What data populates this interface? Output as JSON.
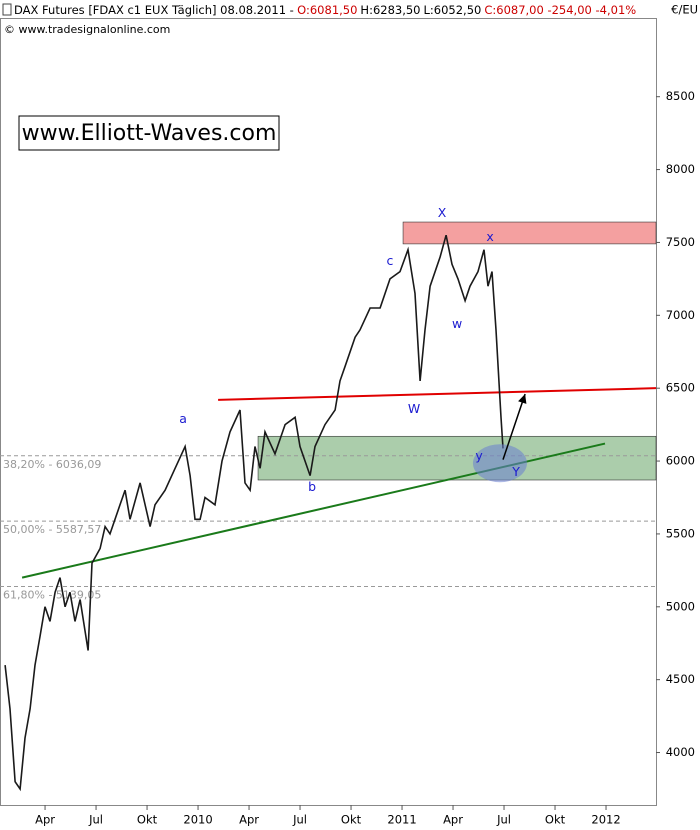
{
  "chart_data": {
    "type": "line",
    "header": [
      {
        "text": "DAX Futures [FDAX c1 EUX  Täglich] 08.08.2011 -",
        "color": "#000000"
      },
      {
        "text": "O:6081,50",
        "color": "#cc0000"
      },
      {
        "text": "H:6283,50",
        "color": "#000000"
      },
      {
        "text": "L:6052,50",
        "color": "#000000"
      },
      {
        "text": "C:6087,00 -254,00 -4,01%",
        "color": "#cc0000"
      }
    ],
    "source": "© www.tradesignalonline.com",
    "watermark": "www.Elliott-Waves.com",
    "y_unit": "€/EU",
    "xlim": [
      0.35,
      38.94
    ],
    "xticks": [
      {
        "value": 3,
        "label": "Apr"
      },
      {
        "value": 6,
        "label": "Jul"
      },
      {
        "value": 9,
        "label": "Okt"
      },
      {
        "value": 12,
        "label": "2010"
      },
      {
        "value": 15,
        "label": "Apr"
      },
      {
        "value": 18,
        "label": "Jul"
      },
      {
        "value": 21,
        "label": "Okt"
      },
      {
        "value": 24,
        "label": "2011"
      },
      {
        "value": 27,
        "label": "Apr"
      },
      {
        "value": 30,
        "label": "Jul"
      },
      {
        "value": 33,
        "label": "Okt"
      },
      {
        "value": 36,
        "label": "2012"
      }
    ],
    "ylim": [
      3640,
      9040
    ],
    "yticks": [
      4000,
      4500,
      5000,
      5500,
      6000,
      6500,
      7000,
      7500,
      8000,
      8500
    ],
    "series": [
      {
        "name": "DAX Futures",
        "color": "#1a1a1a",
        "x": [
          0.65,
          0.94,
          1.24,
          1.53,
          1.82,
          2.12,
          2.41,
          2.71,
          3.0,
          3.29,
          3.59,
          3.88,
          4.18,
          4.47,
          4.76,
          5.06,
          5.53,
          5.76,
          6.24,
          6.53,
          6.82,
          7.41,
          7.71,
          8.0,
          8.59,
          9.18,
          9.47,
          10.06,
          10.65,
          11.24,
          11.53,
          11.82,
          12.12,
          12.41,
          13.0,
          13.41,
          13.88,
          14.47,
          14.76,
          15.06,
          15.35,
          15.65,
          15.94,
          16.53,
          17.12,
          17.71,
          18.0,
          18.59,
          18.88,
          19.47,
          20.06,
          20.35,
          20.65,
          21.24,
          21.53,
          22.12,
          22.71,
          23.29,
          23.88,
          24.35,
          24.76,
          25.06,
          25.35,
          25.65,
          26.24,
          26.59,
          26.94,
          27.29,
          27.71,
          28.0,
          28.47,
          28.82,
          29.06,
          29.29,
          29.53,
          29.82,
          29.94
        ],
        "values": [
          4600,
          4300,
          3800,
          3750,
          4100,
          4300,
          4600,
          4800,
          5000,
          4900,
          5100,
          5200,
          5000,
          5100,
          4900,
          5050,
          4700,
          5300,
          5400,
          5550,
          5500,
          5700,
          5800,
          5600,
          5850,
          5550,
          5700,
          5800,
          5950,
          6100,
          5900,
          5600,
          5600,
          5750,
          5700,
          6000,
          6200,
          6350,
          5850,
          5800,
          6100,
          5950,
          6200,
          6050,
          6250,
          6300,
          6100,
          5900,
          6100,
          6250,
          6350,
          6550,
          6650,
          6850,
          6900,
          7050,
          7050,
          7250,
          7300,
          7450,
          7150,
          6550,
          6900,
          7200,
          7400,
          7550,
          7350,
          7250,
          7100,
          7200,
          7300,
          7450,
          7200,
          7300,
          6900,
          6300,
          6087
        ]
      }
    ],
    "fib_levels": [
      {
        "value": 6036.09,
        "label": "38,20% - 6036,09"
      },
      {
        "value": 5587.57,
        "label": "50,00% - 5587,57"
      },
      {
        "value": 5139.05,
        "label": "61,80% - 5139,05"
      }
    ],
    "zones": [
      {
        "from_x": 24.06,
        "low": 7490,
        "high": 7640,
        "color": "#f08080"
      },
      {
        "from_x": 15.53,
        "low": 5870,
        "high": 6170,
        "color": "#8fbc8f"
      }
    ],
    "trend_lines": [
      {
        "x": [
          13.18,
          38.94
        ],
        "y": [
          6420,
          6500
        ],
        "color": "#e00000"
      },
      {
        "x": [
          1.65,
          35.94
        ],
        "y": [
          5200,
          6120
        ],
        "color": "#1a7a1a"
      }
    ],
    "target_ellipse": {
      "x": 29.76,
      "y": 5985
    },
    "arrow": {
      "x": [
        29.94,
        31.24
      ],
      "y": [
        6010,
        6460
      ]
    },
    "wave_labels": [
      {
        "text": "a",
        "x": 11.12,
        "y": 6284
      },
      {
        "text": "b",
        "x": 18.71,
        "y": 5818
      },
      {
        "text": "c",
        "x": 23.29,
        "y": 7368
      },
      {
        "text": "X",
        "x": 26.35,
        "y": 7697
      },
      {
        "text": "W",
        "x": 24.71,
        "y": 6353
      },
      {
        "text": "w",
        "x": 27.24,
        "y": 6936
      },
      {
        "text": "x",
        "x": 29.18,
        "y": 7533
      },
      {
        "text": "y",
        "x": 28.53,
        "y": 6031
      },
      {
        "text": "Y",
        "x": 30.71,
        "y": 5921
      }
    ]
  }
}
